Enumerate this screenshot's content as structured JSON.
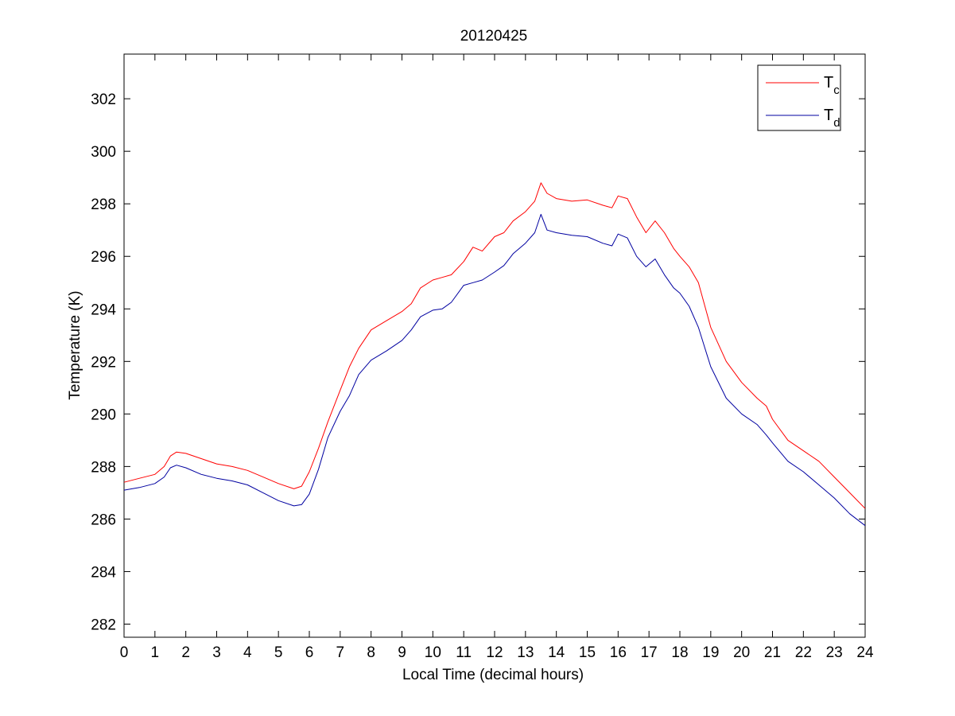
{
  "chart_data": {
    "type": "line",
    "title": "20120425",
    "xlabel": "Local Time (decimal hours)",
    "ylabel": "Temperature (K)",
    "xlim": [
      0,
      24
    ],
    "ylim": [
      281.5,
      303.7
    ],
    "xticks": [
      0,
      1,
      2,
      3,
      4,
      5,
      6,
      7,
      8,
      9,
      10,
      11,
      12,
      13,
      14,
      15,
      16,
      17,
      18,
      19,
      20,
      21,
      22,
      23,
      24
    ],
    "yticks": [
      282,
      284,
      286,
      288,
      290,
      292,
      294,
      296,
      298,
      300,
      302
    ],
    "grid": false,
    "legend_position": "top-right",
    "series": [
      {
        "name": "T",
        "subscript": "c",
        "color": "#ff0000",
        "x": [
          0,
          0.5,
          1.0,
          1.3,
          1.5,
          1.7,
          2.0,
          2.5,
          3.0,
          3.5,
          4.0,
          4.5,
          5.0,
          5.5,
          5.75,
          6.0,
          6.3,
          6.6,
          7.0,
          7.3,
          7.6,
          8.0,
          8.5,
          9.0,
          9.3,
          9.6,
          10.0,
          10.3,
          10.6,
          11.0,
          11.3,
          11.6,
          12.0,
          12.3,
          12.6,
          13.0,
          13.3,
          13.5,
          13.7,
          14.0,
          14.5,
          15.0,
          15.5,
          15.8,
          16.0,
          16.3,
          16.6,
          16.9,
          17.2,
          17.5,
          17.8,
          18.0,
          18.3,
          18.6,
          19.0,
          19.5,
          20.0,
          20.5,
          20.8,
          21.0,
          21.5,
          22.0,
          22.5,
          23.0,
          23.5,
          24.0
        ],
        "y": [
          287.4,
          287.55,
          287.7,
          288.0,
          288.4,
          288.55,
          288.5,
          288.3,
          288.1,
          288.0,
          287.85,
          287.6,
          287.35,
          287.15,
          287.25,
          287.8,
          288.7,
          289.7,
          290.9,
          291.8,
          292.5,
          293.2,
          293.55,
          293.9,
          294.2,
          294.8,
          295.1,
          295.2,
          295.3,
          295.8,
          296.35,
          296.2,
          296.75,
          296.9,
          297.35,
          297.7,
          298.1,
          298.8,
          298.4,
          298.2,
          298.1,
          298.15,
          297.95,
          297.85,
          298.3,
          298.2,
          297.5,
          296.9,
          297.35,
          296.9,
          296.3,
          296.0,
          295.6,
          295.0,
          293.3,
          292.0,
          291.2,
          290.6,
          290.3,
          289.8,
          289.0,
          288.6,
          288.2,
          287.6,
          287.0,
          286.4
        ]
      },
      {
        "name": "T",
        "subscript": "d",
        "color": "#0000a0",
        "x": [
          0,
          0.5,
          1.0,
          1.3,
          1.5,
          1.7,
          2.0,
          2.5,
          3.0,
          3.5,
          4.0,
          4.5,
          5.0,
          5.5,
          5.75,
          6.0,
          6.3,
          6.6,
          7.0,
          7.3,
          7.6,
          8.0,
          8.5,
          9.0,
          9.3,
          9.6,
          10.0,
          10.3,
          10.6,
          11.0,
          11.3,
          11.6,
          12.0,
          12.3,
          12.6,
          13.0,
          13.3,
          13.5,
          13.7,
          14.0,
          14.5,
          15.0,
          15.5,
          15.8,
          16.0,
          16.3,
          16.6,
          16.9,
          17.2,
          17.5,
          17.8,
          18.0,
          18.3,
          18.6,
          19.0,
          19.5,
          20.0,
          20.5,
          20.8,
          21.0,
          21.5,
          22.0,
          22.5,
          23.0,
          23.5,
          24.0
        ],
        "y": [
          287.1,
          287.2,
          287.35,
          287.6,
          287.95,
          288.05,
          287.95,
          287.7,
          287.55,
          287.45,
          287.3,
          287.0,
          286.7,
          286.5,
          286.55,
          286.95,
          287.9,
          289.1,
          290.1,
          290.7,
          291.5,
          292.05,
          292.4,
          292.8,
          293.2,
          293.7,
          293.95,
          294.0,
          294.25,
          294.9,
          295.0,
          295.1,
          295.4,
          295.65,
          296.1,
          296.5,
          296.9,
          297.6,
          297.0,
          296.9,
          296.8,
          296.75,
          296.5,
          296.4,
          296.85,
          296.7,
          296.0,
          295.6,
          295.9,
          295.3,
          294.8,
          294.6,
          294.1,
          293.3,
          291.8,
          290.6,
          290.0,
          289.6,
          289.2,
          288.9,
          288.2,
          287.8,
          287.3,
          286.8,
          286.2,
          285.75
        ]
      }
    ]
  }
}
